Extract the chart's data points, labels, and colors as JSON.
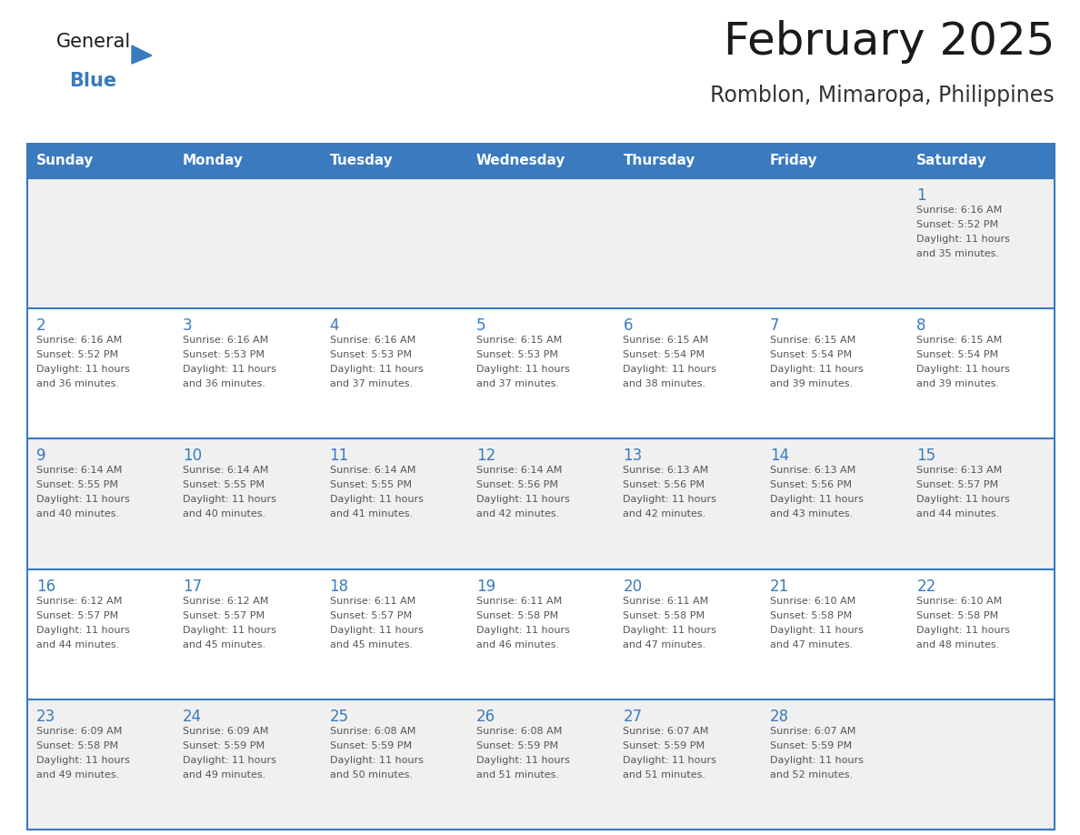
{
  "title": "February 2025",
  "subtitle": "Romblon, Mimaropa, Philippines",
  "days_of_week": [
    "Sunday",
    "Monday",
    "Tuesday",
    "Wednesday",
    "Thursday",
    "Friday",
    "Saturday"
  ],
  "header_bg": "#3a7abf",
  "header_text": "#ffffff",
  "row_bg_odd": "#f0f0f0",
  "row_bg_even": "#ffffff",
  "cell_border": "#3a7abf",
  "day_number_color": "#3a7abf",
  "info_text_color": "#555555",
  "title_color": "#1a1a1a",
  "subtitle_color": "#333333",
  "logo_general_color": "#1a1a1a",
  "logo_blue_color": "#3a7abf",
  "calendar_data": [
    [
      null,
      null,
      null,
      null,
      null,
      null,
      {
        "day": 1,
        "sunrise": "6:16 AM",
        "sunset": "5:52 PM",
        "daylight": "11 hours\nand 35 minutes."
      }
    ],
    [
      {
        "day": 2,
        "sunrise": "6:16 AM",
        "sunset": "5:52 PM",
        "daylight": "11 hours\nand 36 minutes."
      },
      {
        "day": 3,
        "sunrise": "6:16 AM",
        "sunset": "5:53 PM",
        "daylight": "11 hours\nand 36 minutes."
      },
      {
        "day": 4,
        "sunrise": "6:16 AM",
        "sunset": "5:53 PM",
        "daylight": "11 hours\nand 37 minutes."
      },
      {
        "day": 5,
        "sunrise": "6:15 AM",
        "sunset": "5:53 PM",
        "daylight": "11 hours\nand 37 minutes."
      },
      {
        "day": 6,
        "sunrise": "6:15 AM",
        "sunset": "5:54 PM",
        "daylight": "11 hours\nand 38 minutes."
      },
      {
        "day": 7,
        "sunrise": "6:15 AM",
        "sunset": "5:54 PM",
        "daylight": "11 hours\nand 39 minutes."
      },
      {
        "day": 8,
        "sunrise": "6:15 AM",
        "sunset": "5:54 PM",
        "daylight": "11 hours\nand 39 minutes."
      }
    ],
    [
      {
        "day": 9,
        "sunrise": "6:14 AM",
        "sunset": "5:55 PM",
        "daylight": "11 hours\nand 40 minutes."
      },
      {
        "day": 10,
        "sunrise": "6:14 AM",
        "sunset": "5:55 PM",
        "daylight": "11 hours\nand 40 minutes."
      },
      {
        "day": 11,
        "sunrise": "6:14 AM",
        "sunset": "5:55 PM",
        "daylight": "11 hours\nand 41 minutes."
      },
      {
        "day": 12,
        "sunrise": "6:14 AM",
        "sunset": "5:56 PM",
        "daylight": "11 hours\nand 42 minutes."
      },
      {
        "day": 13,
        "sunrise": "6:13 AM",
        "sunset": "5:56 PM",
        "daylight": "11 hours\nand 42 minutes."
      },
      {
        "day": 14,
        "sunrise": "6:13 AM",
        "sunset": "5:56 PM",
        "daylight": "11 hours\nand 43 minutes."
      },
      {
        "day": 15,
        "sunrise": "6:13 AM",
        "sunset": "5:57 PM",
        "daylight": "11 hours\nand 44 minutes."
      }
    ],
    [
      {
        "day": 16,
        "sunrise": "6:12 AM",
        "sunset": "5:57 PM",
        "daylight": "11 hours\nand 44 minutes."
      },
      {
        "day": 17,
        "sunrise": "6:12 AM",
        "sunset": "5:57 PM",
        "daylight": "11 hours\nand 45 minutes."
      },
      {
        "day": 18,
        "sunrise": "6:11 AM",
        "sunset": "5:57 PM",
        "daylight": "11 hours\nand 45 minutes."
      },
      {
        "day": 19,
        "sunrise": "6:11 AM",
        "sunset": "5:58 PM",
        "daylight": "11 hours\nand 46 minutes."
      },
      {
        "day": 20,
        "sunrise": "6:11 AM",
        "sunset": "5:58 PM",
        "daylight": "11 hours\nand 47 minutes."
      },
      {
        "day": 21,
        "sunrise": "6:10 AM",
        "sunset": "5:58 PM",
        "daylight": "11 hours\nand 47 minutes."
      },
      {
        "day": 22,
        "sunrise": "6:10 AM",
        "sunset": "5:58 PM",
        "daylight": "11 hours\nand 48 minutes."
      }
    ],
    [
      {
        "day": 23,
        "sunrise": "6:09 AM",
        "sunset": "5:58 PM",
        "daylight": "11 hours\nand 49 minutes."
      },
      {
        "day": 24,
        "sunrise": "6:09 AM",
        "sunset": "5:59 PM",
        "daylight": "11 hours\nand 49 minutes."
      },
      {
        "day": 25,
        "sunrise": "6:08 AM",
        "sunset": "5:59 PM",
        "daylight": "11 hours\nand 50 minutes."
      },
      {
        "day": 26,
        "sunrise": "6:08 AM",
        "sunset": "5:59 PM",
        "daylight": "11 hours\nand 51 minutes."
      },
      {
        "day": 27,
        "sunrise": "6:07 AM",
        "sunset": "5:59 PM",
        "daylight": "11 hours\nand 51 minutes."
      },
      {
        "day": 28,
        "sunrise": "6:07 AM",
        "sunset": "5:59 PM",
        "daylight": "11 hours\nand 52 minutes."
      },
      null
    ]
  ],
  "num_rows": 5,
  "num_cols": 7
}
